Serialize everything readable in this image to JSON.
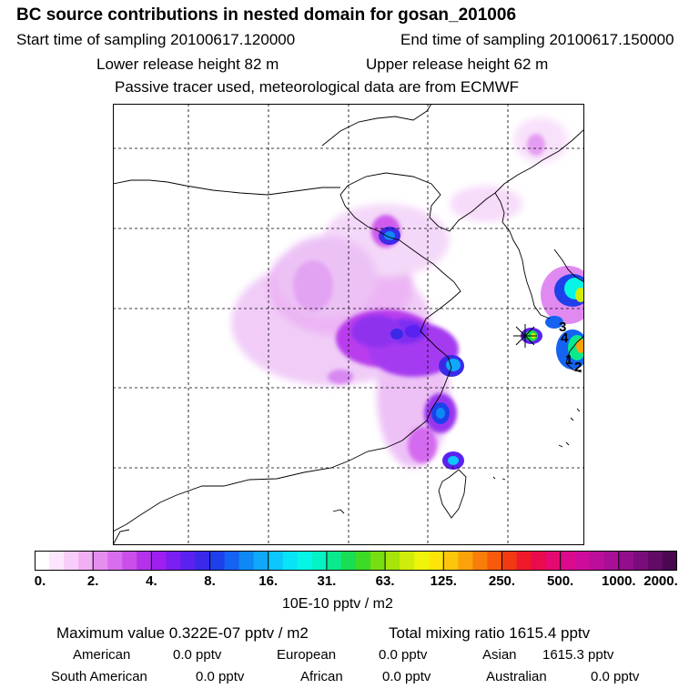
{
  "title": "BC  source contributions in nested domain for gosan_201006",
  "header": {
    "start_time": "Start time of sampling 20100617.120000",
    "end_time": "End time of sampling 20100617.150000",
    "lower_height": "Lower release height   82 m",
    "upper_height": "Upper release height   62 m",
    "tracer_note": "Passive tracer used, meteorological data are from ECMWF"
  },
  "map": {
    "receptor_marker": "gosan",
    "labels": [
      "3",
      "4",
      "1",
      "2"
    ]
  },
  "colorbar": {
    "ticks": [
      "0.",
      "2.",
      "4.",
      "8.",
      "16.",
      "31.",
      "63.",
      "125.",
      "250.",
      "500.",
      "1000.",
      "2000."
    ],
    "units": "10E-10 pptv / m2",
    "colors": [
      "#ffffff",
      "#fde6fd",
      "#f9cdf9",
      "#f2b0f4",
      "#e68ef0",
      "#d86ded",
      "#c94eea",
      "#b332ea",
      "#9e1ff0",
      "#7c1ff2",
      "#5a22f0",
      "#3a2ae8",
      "#1e40ea",
      "#1463f2",
      "#0f88f6",
      "#10a8fa",
      "#0cc7fb",
      "#08e3f7",
      "#05f5e6",
      "#05f3c4",
      "#0ae98c",
      "#19dd52",
      "#3ddb25",
      "#78de12",
      "#a6e40a",
      "#d0ec0a",
      "#eef40a",
      "#fde50a",
      "#fcc60a",
      "#fba20a",
      "#f97d0a",
      "#f65a0a",
      "#f23a12",
      "#ee1a2a",
      "#ea0a4e",
      "#e40a70",
      "#dc0a8c",
      "#ce0c9c",
      "#bc0e9a",
      "#a80e96",
      "#920e8c",
      "#7a0c7c",
      "#620a66",
      "#4a0850"
    ]
  },
  "summary": {
    "max_value": "Maximum value  0.322E-07 pptv / m2",
    "total_mixing": "Total mixing ratio     1615.4 pptv",
    "american_label": "American",
    "american_value": "0.0 pptv",
    "european_label": "European",
    "european_value": "0.0 pptv",
    "asian_label": "Asian",
    "asian_value": "1615.3 pptv",
    "south_american_label": "South American",
    "south_american_value": "0.0 pptv",
    "african_label": "African",
    "african_value": "0.0 pptv",
    "australian_label": "Australian",
    "australian_value": "0.0 pptv"
  }
}
